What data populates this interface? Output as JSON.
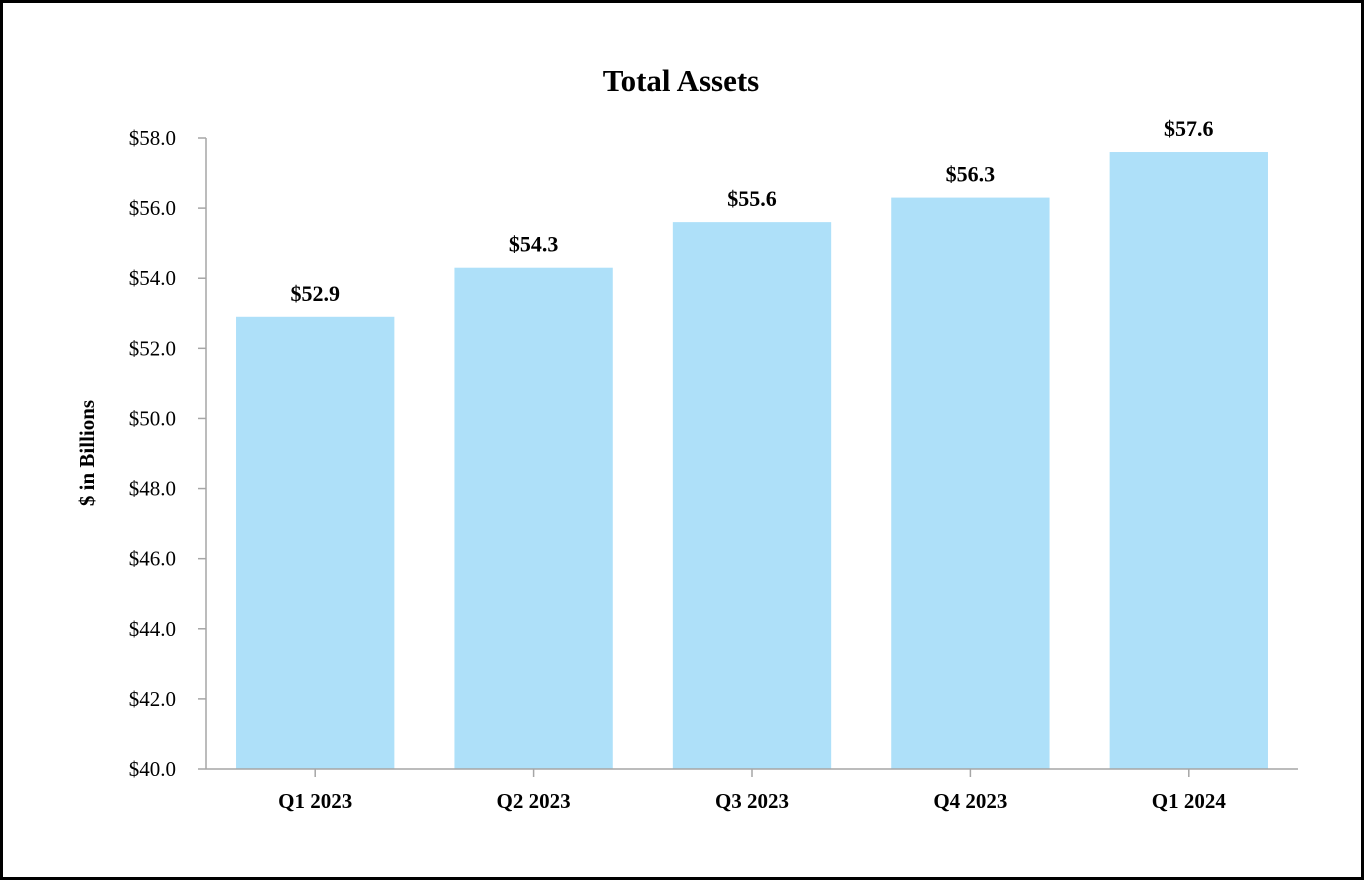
{
  "chart_data": {
    "type": "bar",
    "title": "Total Assets",
    "xlabel": "",
    "ylabel": "$ in Billions",
    "categories": [
      "Q1 2023",
      "Q2 2023",
      "Q3 2023",
      "Q4 2023",
      "Q1 2024"
    ],
    "values": [
      52.9,
      54.3,
      55.6,
      56.3,
      57.6
    ],
    "data_labels": [
      "$52.9",
      "$54.3",
      "$55.6",
      "$56.3",
      "$57.6"
    ],
    "ylim": [
      40.0,
      58.0
    ],
    "yticks": [
      40.0,
      42.0,
      44.0,
      46.0,
      48.0,
      50.0,
      52.0,
      54.0,
      56.0,
      58.0
    ],
    "ytick_labels": [
      "$40.0",
      "$42.0",
      "$44.0",
      "$46.0",
      "$48.0",
      "$50.0",
      "$52.0",
      "$54.0",
      "$56.0",
      "$58.0"
    ],
    "grid": false,
    "legend": "none",
    "bar_color": "#aee0f9",
    "axis_color": "#a6a6a6"
  }
}
